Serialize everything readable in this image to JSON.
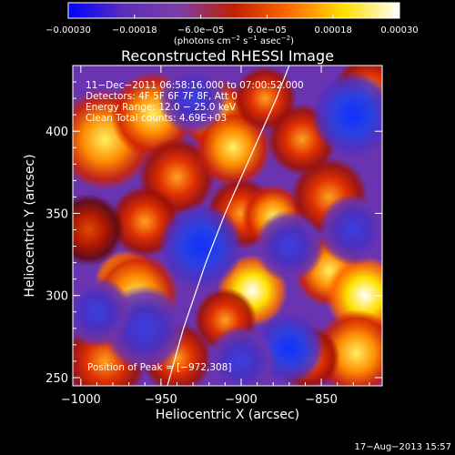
{
  "chart_data": {
    "type": "heatmap",
    "title": "Reconstructed RHESSI Image",
    "xlabel": "Heliocentric X (arcsec)",
    "ylabel": "Heliocentric Y (arcsec)",
    "xlim": [
      -1005,
      -812
    ],
    "ylim": [
      245,
      440
    ],
    "x_ticks": [
      -1000,
      -950,
      -900,
      -850
    ],
    "x_tick_labels": [
      "−1000",
      "−950",
      "−900",
      "−850"
    ],
    "y_ticks": [
      250,
      300,
      350,
      400
    ],
    "y_tick_labels": [
      "250",
      "300",
      "350",
      "400"
    ],
    "colorbar": {
      "range": [
        -0.0003,
        0.0003
      ],
      "ticks": [
        -0.0003,
        -0.00018,
        -6e-05,
        6e-05,
        0.00018,
        0.0003
      ],
      "tick_labels": [
        "−0.00030",
        "−0.00018",
        "−6.0e−05",
        "6.0e−05",
        "0.00018",
        "0.00030"
      ],
      "unit_main": "(photons cm",
      "unit_exp1": "−2",
      "unit_mid": " s",
      "unit_exp2": "−1",
      "unit_end": " asec",
      "unit_exp3": "−2",
      "unit_close": ")",
      "colors": [
        "#0000ff",
        "#5a2eb8",
        "#7a3ea8",
        "#c02000",
        "#ff6a00",
        "#ffe000",
        "#ffffff"
      ]
    },
    "annotations": [
      "11−Dec−2011 06:58:16.000 to 07:00:52.000",
      "Detectors: 4F 5F 6F 7F 8F, Att 0",
      "Energy Range: 12.0 − 25.0 keV",
      "Clean     Total counts: 4.69E+03"
    ],
    "peak_label": "Position of Peak = [−972,308]",
    "peak": [
      -972,
      308
    ],
    "limb_curve": [
      [
        -946,
        245
      ],
      [
        -936,
        280
      ],
      [
        -922,
        320
      ],
      [
        -910,
        350
      ],
      [
        -894,
        385
      ],
      [
        -878,
        420
      ],
      [
        -870,
        440
      ]
    ],
    "hotspots": [
      {
        "x": -972,
        "y": 308,
        "amp": 1.0,
        "r": 9
      },
      {
        "x": -965,
        "y": 300,
        "amp": 0.7,
        "r": 12
      },
      {
        "x": -985,
        "y": 395,
        "amp": 0.8,
        "r": 14
      },
      {
        "x": -955,
        "y": 410,
        "amp": 0.75,
        "r": 12
      },
      {
        "x": -940,
        "y": 372,
        "amp": 0.65,
        "r": 11
      },
      {
        "x": -960,
        "y": 345,
        "amp": 0.55,
        "r": 10
      },
      {
        "x": -985,
        "y": 260,
        "amp": 0.55,
        "r": 12
      },
      {
        "x": -940,
        "y": 262,
        "amp": 0.5,
        "r": 10
      },
      {
        "x": -916,
        "y": 410,
        "amp": 0.8,
        "r": 10
      },
      {
        "x": -905,
        "y": 390,
        "amp": 0.7,
        "r": 11
      },
      {
        "x": -885,
        "y": 420,
        "amp": 0.55,
        "r": 9
      },
      {
        "x": -900,
        "y": 350,
        "amp": 0.6,
        "r": 10
      },
      {
        "x": -880,
        "y": 348,
        "amp": 0.75,
        "r": 9
      },
      {
        "x": -893,
        "y": 303,
        "amp": 0.9,
        "r": 10
      },
      {
        "x": -910,
        "y": 285,
        "amp": 0.6,
        "r": 9
      },
      {
        "x": -862,
        "y": 395,
        "amp": 0.55,
        "r": 10
      },
      {
        "x": -845,
        "y": 360,
        "amp": 0.6,
        "r": 11
      },
      {
        "x": -845,
        "y": 315,
        "amp": 0.75,
        "r": 10
      },
      {
        "x": -823,
        "y": 300,
        "amp": 0.95,
        "r": 11
      },
      {
        "x": -828,
        "y": 265,
        "amp": 0.85,
        "r": 12
      },
      {
        "x": -858,
        "y": 262,
        "amp": 0.6,
        "r": 9
      },
      {
        "x": -820,
        "y": 425,
        "amp": 0.55,
        "r": 10
      },
      {
        "x": -995,
        "y": 340,
        "amp": 0.45,
        "r": 10
      },
      {
        "x": -925,
        "y": 330,
        "amp": -0.5,
        "r": 12
      },
      {
        "x": -960,
        "y": 280,
        "amp": -0.45,
        "r": 12
      },
      {
        "x": -870,
        "y": 268,
        "amp": -0.7,
        "r": 10
      },
      {
        "x": -830,
        "y": 410,
        "amp": -0.5,
        "r": 12
      },
      {
        "x": -930,
        "y": 420,
        "amp": -0.4,
        "r": 10
      },
      {
        "x": -990,
        "y": 290,
        "amp": -0.4,
        "r": 10
      },
      {
        "x": -870,
        "y": 330,
        "amp": -0.45,
        "r": 10
      },
      {
        "x": -900,
        "y": 260,
        "amp": -0.35,
        "r": 10
      },
      {
        "x": -830,
        "y": 340,
        "amp": -0.45,
        "r": 10
      }
    ]
  },
  "footer": {
    "timestamp": "17−Aug−2013 15:57"
  }
}
